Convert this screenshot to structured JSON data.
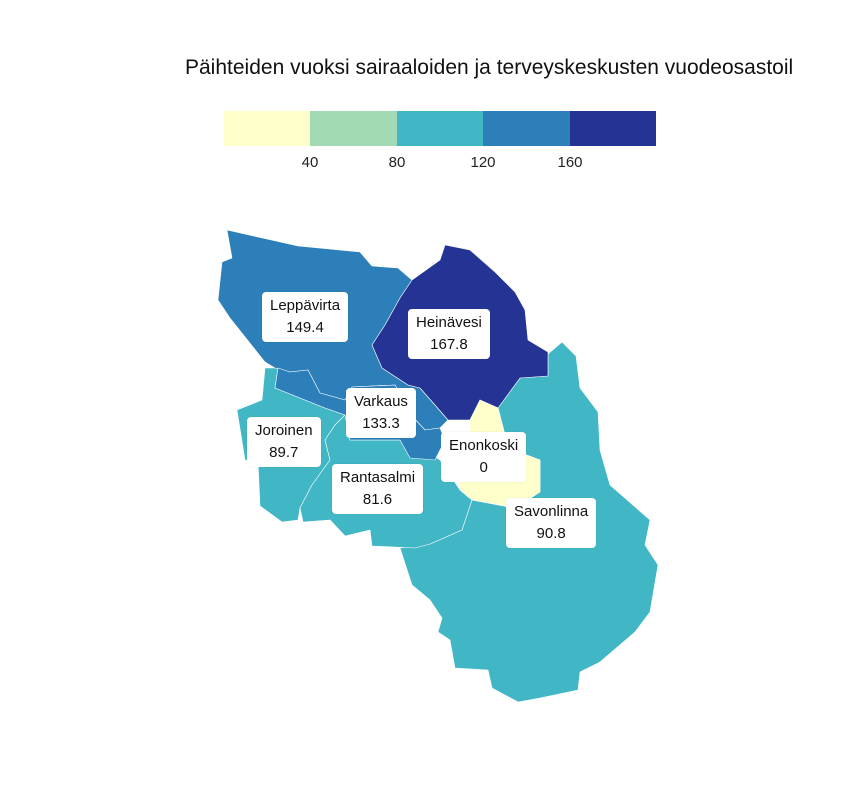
{
  "map": {
    "title": "Päihteiden vuoksi sairaaloiden ja terveyskeskusten vuodeosastoil",
    "legend": {
      "colors": [
        "#ffffcc",
        "#a1dab4",
        "#41b6c4",
        "#2c7fb8",
        "#253494"
      ],
      "ticks": [
        "40",
        "80",
        "120",
        "160"
      ]
    },
    "regions": [
      {
        "name": "Leppävirta",
        "value": "149.4",
        "color": "#2c7fb8"
      },
      {
        "name": "Heinävesi",
        "value": "167.8",
        "color": "#253494"
      },
      {
        "name": "Varkaus",
        "value": "133.3",
        "color": "#2c7fb8"
      },
      {
        "name": "Joroinen",
        "value": "89.7",
        "color": "#41b6c4"
      },
      {
        "name": "Enonkoski",
        "value": "0",
        "color": "#ffffcc"
      },
      {
        "name": "Rantasalmi",
        "value": "81.6",
        "color": "#41b6c4"
      },
      {
        "name": "Savonlinna",
        "value": "90.8",
        "color": "#41b6c4"
      }
    ]
  }
}
